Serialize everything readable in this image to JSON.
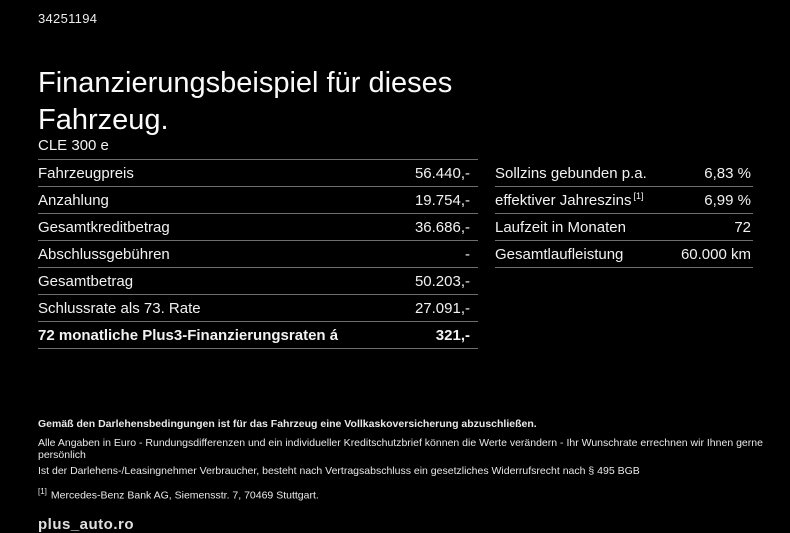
{
  "ref_number": "34251194",
  "title": "Finanzierungsbeispiel für dieses Fahrzeug.",
  "model": "CLE 300 e",
  "finance_table": {
    "rows": [
      {
        "label": "Fahrzeugpreis",
        "value": "56.440,-"
      },
      {
        "label": "Anzahlung",
        "value": "19.754,-"
      },
      {
        "label": "Gesamtkreditbetrag",
        "value": "36.686,-"
      },
      {
        "label": "Abschlussgebühren",
        "value": "-"
      },
      {
        "label": "Gesamtbetrag",
        "value": "50.203,-"
      },
      {
        "label": "Schlussrate als 73. Rate",
        "value": "27.091,-"
      },
      {
        "label": "72 monatliche Plus3-Finanzierungsraten á",
        "value": "321,-"
      }
    ]
  },
  "conditions_table": {
    "rows": [
      {
        "label": "Sollzins gebunden p.a.",
        "sup": "",
        "value": "6,83 %"
      },
      {
        "label": "effektiver Jahreszins",
        "sup": "[1]",
        "value": "6,99 %"
      },
      {
        "label": "Laufzeit in Monaten",
        "sup": "",
        "value": "72"
      },
      {
        "label": "Gesamtlaufleistung",
        "sup": "",
        "value": "60.000 km"
      }
    ]
  },
  "footnotes": {
    "bold_note": "Gemäß den Darlehensbedingungen ist für das Fahrzeug eine Vollkaskoversicherung abzuschließen.",
    "note2": "Alle Angaben in Euro - Rundungsdifferenzen und ein individueller Kreditschutzbrief können die Werte verändern - Ihr Wunschrate errechnen wir Ihnen gerne persönlich",
    "note3": "Ist der Darlehens-/Leasingnehmer Verbraucher, besteht nach Vertragsabschluss ein gesetzliches Widerrufsrecht nach § 495 BGB",
    "source_marker": "[1]",
    "source_text": "Mercedes-Benz Bank AG, Siemensstr. 7, 70469 Stuttgart."
  },
  "watermark": "plus_auto.ro",
  "colors": {
    "background": "#000000",
    "text": "#f2f2f2",
    "divider": "#6e6e6e"
  }
}
